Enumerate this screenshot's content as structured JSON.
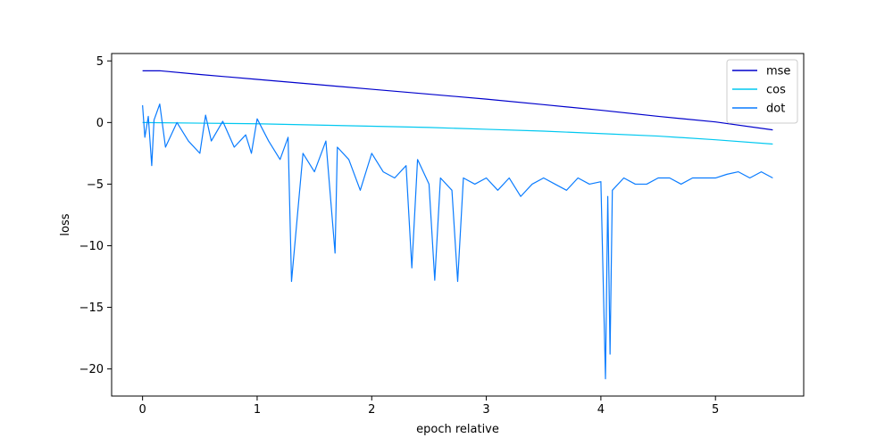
{
  "chart_data": {
    "type": "line",
    "xlabel": "epoch relative",
    "ylabel": "loss",
    "xlim": [
      -0.27,
      5.77
    ],
    "ylim": [
      -22.2,
      5.6
    ],
    "xticks": [
      0,
      1,
      2,
      3,
      4,
      5
    ],
    "yticks": [
      5,
      0,
      -5,
      -10,
      -15,
      -20
    ],
    "grid": false,
    "legend_position": "top-right",
    "series": [
      {
        "name": "mse",
        "color": "#0000cc",
        "x": [
          0,
          0.15,
          0.5,
          1.0,
          1.5,
          2.0,
          2.5,
          3.0,
          3.5,
          4.0,
          4.5,
          5.0,
          5.5
        ],
        "y": [
          4.2,
          4.2,
          3.9,
          3.5,
          3.1,
          2.7,
          2.3,
          1.9,
          1.45,
          1.0,
          0.5,
          0.05,
          -0.6
        ]
      },
      {
        "name": "cos",
        "color": "#00c8f0",
        "x": [
          0,
          0.5,
          1.0,
          1.5,
          2.0,
          2.5,
          3.0,
          3.5,
          4.0,
          4.5,
          5.0,
          5.5
        ],
        "y": [
          0.0,
          -0.05,
          -0.1,
          -0.2,
          -0.3,
          -0.4,
          -0.55,
          -0.7,
          -0.9,
          -1.1,
          -1.4,
          -1.75
        ]
      },
      {
        "name": "dot",
        "color": "#0a7cff",
        "x": [
          0,
          0.02,
          0.05,
          0.08,
          0.1,
          0.15,
          0.2,
          0.3,
          0.4,
          0.5,
          0.55,
          0.6,
          0.7,
          0.8,
          0.9,
          0.95,
          1.0,
          1.1,
          1.2,
          1.27,
          1.3,
          1.4,
          1.5,
          1.6,
          1.68,
          1.7,
          1.8,
          1.9,
          2.0,
          2.1,
          2.2,
          2.3,
          2.35,
          2.4,
          2.5,
          2.55,
          2.6,
          2.7,
          2.75,
          2.8,
          2.9,
          3.0,
          3.1,
          3.2,
          3.3,
          3.4,
          3.5,
          3.6,
          3.7,
          3.8,
          3.9,
          4.0,
          4.04,
          4.06,
          4.08,
          4.1,
          4.2,
          4.3,
          4.4,
          4.5,
          4.6,
          4.7,
          4.8,
          4.9,
          5.0,
          5.1,
          5.2,
          5.3,
          5.4,
          5.5
        ],
        "y": [
          1.4,
          -1.2,
          0.5,
          -3.5,
          0.2,
          1.5,
          -2.0,
          0.0,
          -1.5,
          -2.5,
          0.6,
          -1.5,
          0.1,
          -2.0,
          -1.0,
          -2.5,
          0.3,
          -1.5,
          -3.0,
          -1.2,
          -12.9,
          -2.5,
          -4.0,
          -1.5,
          -10.6,
          -2.0,
          -3.0,
          -5.5,
          -2.5,
          -4.0,
          -4.5,
          -3.5,
          -11.8,
          -3.0,
          -5.0,
          -12.8,
          -4.5,
          -5.5,
          -12.9,
          -4.5,
          -5.0,
          -4.5,
          -5.5,
          -4.5,
          -6.0,
          -5.0,
          -4.5,
          -5.0,
          -5.5,
          -4.5,
          -5.0,
          -4.8,
          -20.8,
          -6.0,
          -18.8,
          -5.5,
          -4.5,
          -5.0,
          -5.0,
          -4.5,
          -4.5,
          -5.0,
          -4.5,
          -4.5,
          -4.5,
          -4.2,
          -4.0,
          -4.5,
          -4.0,
          -4.5
        ]
      }
    ]
  }
}
